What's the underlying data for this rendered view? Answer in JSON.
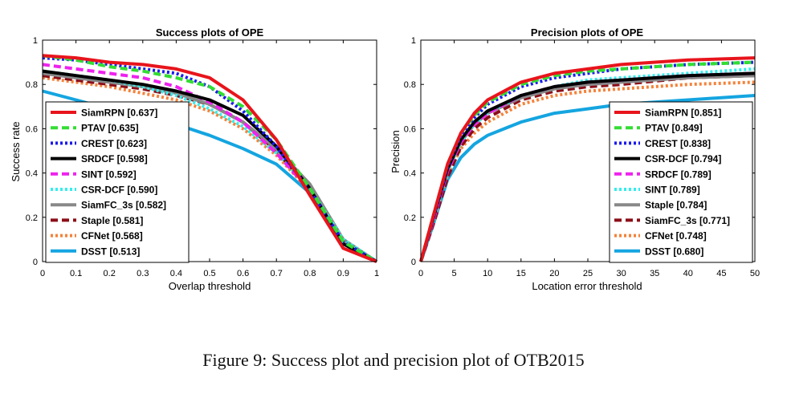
{
  "figure": {
    "caption": "Figure 9: Success plot and precision plot of OTB2015"
  },
  "chart_data": [
    {
      "type": "line",
      "title": "Success plots of OPE",
      "xlabel": "Overlap threshold",
      "ylabel": "Success rate",
      "xlim": [
        0,
        1
      ],
      "ylim": [
        0,
        1
      ],
      "xticks": [
        "0",
        "0.1",
        "0.2",
        "0.3",
        "0.4",
        "0.5",
        "0.6",
        "0.7",
        "0.8",
        "0.9",
        "1"
      ],
      "yticks": [
        "0",
        "0.2",
        "0.4",
        "0.6",
        "0.8",
        "1"
      ],
      "legend_position": "left",
      "x": [
        0,
        0.1,
        0.2,
        0.3,
        0.4,
        0.5,
        0.6,
        0.7,
        0.8,
        0.9,
        1.0
      ],
      "series": [
        {
          "name": "SiamRPN",
          "score": "[0.637]",
          "label": "SiamRPN [0.637]",
          "color": "#e8141c",
          "dash": "solid",
          "values": [
            0.93,
            0.92,
            0.9,
            0.89,
            0.87,
            0.83,
            0.73,
            0.55,
            0.3,
            0.06,
            0.0
          ]
        },
        {
          "name": "PTAV",
          "score": "[0.635]",
          "label": "PTAV [0.635]",
          "color": "#33dd33",
          "dash": "dash",
          "values": [
            0.93,
            0.91,
            0.88,
            0.86,
            0.83,
            0.79,
            0.7,
            0.55,
            0.33,
            0.09,
            0.0
          ]
        },
        {
          "name": "CREST",
          "score": "[0.623]",
          "label": "CREST [0.623]",
          "color": "#1a1aee",
          "dash": "dot",
          "values": [
            0.92,
            0.91,
            0.89,
            0.87,
            0.85,
            0.79,
            0.68,
            0.52,
            0.32,
            0.09,
            0.0
          ]
        },
        {
          "name": "SRDCF",
          "score": "[0.598]",
          "label": "SRDCF [0.598]",
          "color": "#000000",
          "dash": "solid",
          "values": [
            0.86,
            0.84,
            0.82,
            0.8,
            0.77,
            0.73,
            0.66,
            0.52,
            0.33,
            0.08,
            0.0
          ]
        },
        {
          "name": "SINT",
          "score": "[0.592]",
          "label": "SINT [0.592]",
          "color": "#ee22ee",
          "dash": "dash",
          "values": [
            0.89,
            0.87,
            0.85,
            0.83,
            0.79,
            0.72,
            0.63,
            0.49,
            0.32,
            0.08,
            0.0
          ]
        },
        {
          "name": "CSR-DCF",
          "score": "[0.590]",
          "label": "CSR-DCF [0.590]",
          "color": "#33eeee",
          "dash": "dot",
          "values": [
            0.86,
            0.84,
            0.82,
            0.79,
            0.75,
            0.69,
            0.61,
            0.49,
            0.33,
            0.1,
            0.0
          ]
        },
        {
          "name": "SiamFC_3s",
          "score": "[0.582]",
          "label": "SiamFC_3s [0.582]",
          "color": "#888888",
          "dash": "solid",
          "values": [
            0.85,
            0.83,
            0.81,
            0.79,
            0.76,
            0.71,
            0.63,
            0.51,
            0.35,
            0.1,
            0.0
          ]
        },
        {
          "name": "Staple",
          "score": "[0.581]",
          "label": "Staple [0.581]",
          "color": "#8b0d18",
          "dash": "dash",
          "values": [
            0.84,
            0.82,
            0.8,
            0.78,
            0.75,
            0.71,
            0.63,
            0.5,
            0.33,
            0.08,
            0.0
          ]
        },
        {
          "name": "CFNet",
          "score": "[0.568]",
          "label": "CFNet [0.568]",
          "color": "#f5823a",
          "dash": "dot",
          "values": [
            0.83,
            0.81,
            0.79,
            0.76,
            0.73,
            0.68,
            0.6,
            0.48,
            0.32,
            0.09,
            0.0
          ]
        },
        {
          "name": "DSST",
          "score": "[0.513]",
          "label": "DSST [0.513]",
          "color": "#14a5e0",
          "dash": "solid",
          "values": [
            0.77,
            0.73,
            0.69,
            0.65,
            0.62,
            0.57,
            0.51,
            0.44,
            0.31,
            0.1,
            0.0
          ]
        }
      ]
    },
    {
      "type": "line",
      "title": "Precision plots of OPE",
      "xlabel": "Location error threshold",
      "ylabel": "Precision",
      "xlim": [
        0,
        50
      ],
      "ylim": [
        0,
        1
      ],
      "xticks": [
        "0",
        "5",
        "10",
        "15",
        "20",
        "25",
        "30",
        "35",
        "40",
        "45",
        "50"
      ],
      "yticks": [
        "0",
        "0.2",
        "0.4",
        "0.6",
        "0.8",
        "1"
      ],
      "legend_position": "right",
      "x": [
        0,
        2,
        4,
        6,
        8,
        10,
        15,
        20,
        25,
        30,
        40,
        50
      ],
      "series": [
        {
          "name": "SiamRPN",
          "score": "[0.851]",
          "label": "SiamRPN [0.851]",
          "color": "#e8141c",
          "dash": "solid",
          "values": [
            0.0,
            0.22,
            0.44,
            0.58,
            0.67,
            0.73,
            0.81,
            0.85,
            0.87,
            0.89,
            0.91,
            0.92
          ]
        },
        {
          "name": "PTAV",
          "score": "[0.849]",
          "label": "PTAV [0.849]",
          "color": "#33dd33",
          "dash": "dash",
          "values": [
            0.0,
            0.22,
            0.44,
            0.58,
            0.66,
            0.72,
            0.8,
            0.84,
            0.86,
            0.87,
            0.89,
            0.9
          ]
        },
        {
          "name": "CREST",
          "score": "[0.838]",
          "label": "CREST [0.838]",
          "color": "#1a1aee",
          "dash": "dot",
          "values": [
            0.0,
            0.21,
            0.43,
            0.57,
            0.65,
            0.71,
            0.79,
            0.83,
            0.85,
            0.87,
            0.89,
            0.9
          ]
        },
        {
          "name": "CSR-DCF",
          "score": "[0.794]",
          "label": "CSR-DCF [0.794]",
          "color": "#000000",
          "dash": "solid",
          "values": [
            0.0,
            0.21,
            0.42,
            0.55,
            0.63,
            0.68,
            0.75,
            0.79,
            0.81,
            0.82,
            0.84,
            0.85
          ]
        },
        {
          "name": "SRDCF",
          "score": "[0.789]",
          "label": "SRDCF [0.789]",
          "color": "#ee22ee",
          "dash": "dash",
          "values": [
            0.0,
            0.2,
            0.41,
            0.54,
            0.62,
            0.67,
            0.75,
            0.79,
            0.81,
            0.82,
            0.84,
            0.85
          ]
        },
        {
          "name": "SINT",
          "score": "[0.789]",
          "label": "SINT [0.789]",
          "color": "#33eeee",
          "dash": "dot",
          "values": [
            0.0,
            0.2,
            0.41,
            0.54,
            0.62,
            0.67,
            0.75,
            0.79,
            0.82,
            0.83,
            0.85,
            0.87
          ]
        },
        {
          "name": "Staple",
          "score": "[0.784]",
          "label": "Staple [0.784]",
          "color": "#888888",
          "dash": "solid",
          "values": [
            0.0,
            0.2,
            0.41,
            0.54,
            0.62,
            0.67,
            0.74,
            0.78,
            0.8,
            0.81,
            0.83,
            0.84
          ]
        },
        {
          "name": "SiamFC_3s",
          "score": "[0.771]",
          "label": "SiamFC_3s [0.771]",
          "color": "#8b0d18",
          "dash": "dash",
          "values": [
            0.0,
            0.18,
            0.38,
            0.52,
            0.6,
            0.65,
            0.73,
            0.77,
            0.79,
            0.8,
            0.83,
            0.84
          ]
        },
        {
          "name": "CFNet",
          "score": "[0.748]",
          "label": "CFNet [0.748]",
          "color": "#f5823a",
          "dash": "dot",
          "values": [
            0.0,
            0.19,
            0.39,
            0.51,
            0.58,
            0.63,
            0.71,
            0.75,
            0.77,
            0.78,
            0.8,
            0.81
          ]
        },
        {
          "name": "DSST",
          "score": "[0.680]",
          "label": "DSST [0.680]",
          "color": "#14a5e0",
          "dash": "solid",
          "values": [
            0.0,
            0.18,
            0.37,
            0.47,
            0.53,
            0.57,
            0.63,
            0.67,
            0.69,
            0.71,
            0.73,
            0.75
          ]
        }
      ]
    }
  ]
}
